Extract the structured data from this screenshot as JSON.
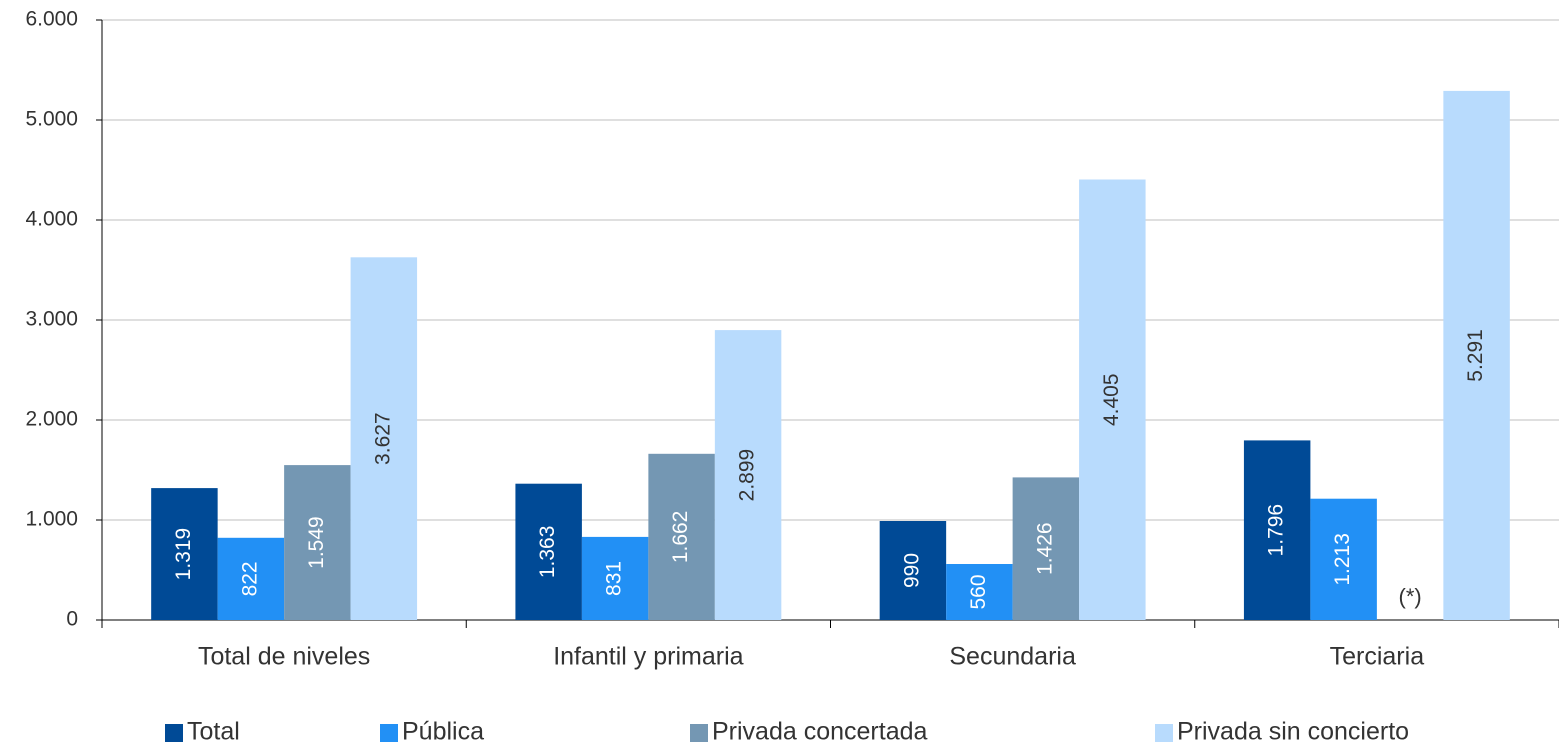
{
  "chart_data": {
    "type": "bar",
    "categories": [
      "Total de niveles",
      "Infantil y primaria",
      "Secundaria",
      "Terciaria"
    ],
    "series": [
      {
        "name": "Total",
        "color": "#004a96",
        "values": [
          1319,
          1363,
          990,
          1796
        ],
        "value_labels": [
          "1.319",
          "1.363",
          "990",
          "1.796"
        ]
      },
      {
        "name": "Pública",
        "color": "#2290f5",
        "values": [
          822,
          831,
          560,
          1213
        ],
        "value_labels": [
          "822",
          "831",
          "560",
          "1.213"
        ]
      },
      {
        "name": "Privada concertada",
        "color": "#7497b3",
        "values": [
          1549,
          1662,
          1426,
          null
        ],
        "value_labels": [
          "1.549",
          "1.662",
          "1.426",
          null
        ]
      },
      {
        "name": "Privada sin concierto",
        "color": "#b8dbfd",
        "values": [
          3627,
          2899,
          4405,
          5291
        ],
        "value_labels": [
          "3.627",
          "2.899",
          "4.405",
          "5.291"
        ]
      }
    ],
    "annotation": "(*)",
    "ylim": [
      0,
      6000
    ],
    "yticks": [
      0,
      {
        "value": 1000,
        "label": "1.000"
      },
      {
        "value": 2000,
        "label": "2.000"
      },
      {
        "value": 3000,
        "label": "3.000"
      },
      {
        "value": 4000,
        "label": "4.000"
      },
      {
        "value": 5000,
        "label": "5.000"
      },
      {
        "value": 6000,
        "label": "6.000"
      }
    ],
    "grid": true,
    "legend": "bottom"
  }
}
